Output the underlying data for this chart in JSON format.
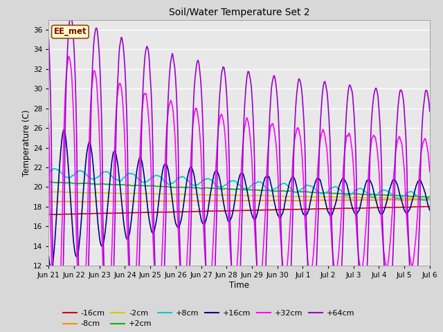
{
  "title": "Soil/Water Temperature Set 2",
  "xlabel": "Time",
  "ylabel": "Temperature (C)",
  "ylim": [
    12,
    37
  ],
  "yticks": [
    12,
    14,
    16,
    18,
    20,
    22,
    24,
    26,
    28,
    30,
    32,
    34,
    36
  ],
  "bg_color": "#d8d8d8",
  "plot_bg_color": "#e8e8e8",
  "annotation_text": "EE_met",
  "annotation_bg": "#ffffcc",
  "annotation_border": "#8b4513",
  "annotation_text_color": "#8b0000",
  "series": [
    {
      "label": "-16cm",
      "color": "#cc0000",
      "lw": 1.2
    },
    {
      "label": "-8cm",
      "color": "#ff8c00",
      "lw": 1.2
    },
    {
      "label": "-2cm",
      "color": "#cccc00",
      "lw": 1.2
    },
    {
      "label": "+2cm",
      "color": "#00bb00",
      "lw": 1.2
    },
    {
      "label": "+8cm",
      "color": "#00cccc",
      "lw": 1.2
    },
    {
      "label": "+16cm",
      "color": "#00008b",
      "lw": 1.2
    },
    {
      "label": "+32cm",
      "color": "#ff00ff",
      "lw": 1.2
    },
    {
      "label": "+64cm",
      "color": "#9900cc",
      "lw": 1.2
    }
  ],
  "n_points": 1440,
  "x_start": 0,
  "x_end": 15,
  "xtick_positions": [
    0,
    1,
    2,
    3,
    4,
    5,
    6,
    7,
    8,
    9,
    10,
    11,
    12,
    13,
    14,
    15
  ],
  "xtick_labels": [
    "Jun 21",
    "Jun 22",
    "Jun 23",
    "Jun 24",
    "Jun 25",
    "Jun 26",
    "Jun 27",
    "Jun 28",
    "Jun 29",
    "Jun 30",
    "Jul 1",
    "Jul 2",
    "Jul 3",
    "Jul 4",
    "Jul 5",
    "Jul 6"
  ],
  "grid_color": "#ffffff",
  "grid_alpha": 1.0
}
